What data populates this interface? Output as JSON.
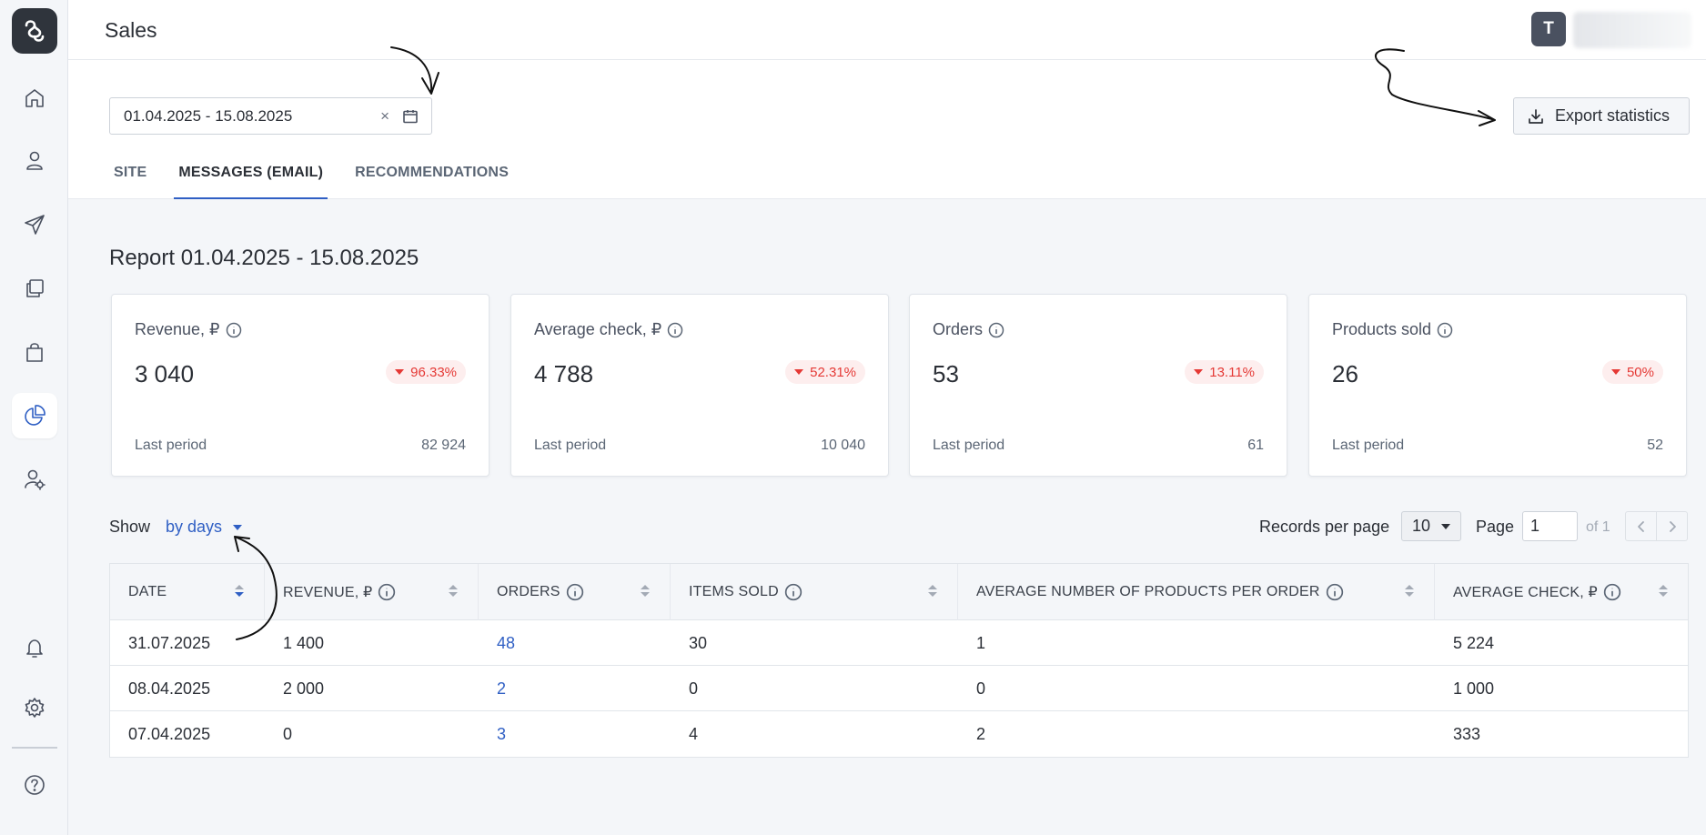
{
  "header": {
    "title": "Sales",
    "avatar_initial": "T"
  },
  "filters": {
    "date_range": "01.04.2025 - 15.08.2025",
    "clear_symbol": "×"
  },
  "export": {
    "label": "Export statistics"
  },
  "tabs": [
    {
      "label": "SITE",
      "active": false
    },
    {
      "label": "MESSAGES (EMAIL)",
      "active": true
    },
    {
      "label": "RECOMMENDATIONS",
      "active": false
    }
  ],
  "report": {
    "title": "Report 01.04.2025 - 15.08.2025"
  },
  "cards": [
    {
      "title": "Revenue, ₽",
      "value": "3 040",
      "change": "96.33%",
      "last_label": "Last period",
      "last_value": "82 924"
    },
    {
      "title": "Average check, ₽",
      "value": "4 788",
      "change": "52.31%",
      "last_label": "Last period",
      "last_value": "10 040"
    },
    {
      "title": "Orders",
      "value": "53",
      "change": "13.11%",
      "last_label": "Last period",
      "last_value": "61"
    },
    {
      "title": "Products sold",
      "value": "26",
      "change": "50%",
      "last_label": "Last period",
      "last_value": "52"
    }
  ],
  "controls": {
    "show_label": "Show",
    "show_value": "by days",
    "records_label": "Records per page",
    "records_value": "10",
    "page_label": "Page",
    "page_value": "1",
    "page_of": "of 1"
  },
  "table": {
    "columns": [
      "DATE",
      "REVENUE, ₽",
      "ORDERS",
      "ITEMS SOLD",
      "AVERAGE NUMBER OF PRODUCTS PER ORDER",
      "AVERAGE CHECK, ₽"
    ],
    "rows": [
      [
        "31.07.2025",
        "1 400",
        "48",
        "30",
        "1",
        "5 224"
      ],
      [
        "08.04.2025",
        "2 000",
        "2",
        "0",
        "0",
        "1 000"
      ],
      [
        "07.04.2025",
        "0",
        "3",
        "4",
        "2",
        "333"
      ]
    ]
  },
  "colors": {
    "accent": "#2f5fc4",
    "negative": "#e53935",
    "sidebar_logo": "#2f343c"
  },
  "icons": {
    "sidebar": [
      "home-icon",
      "user-icon",
      "send-icon",
      "copy-icon",
      "bag-icon",
      "pie-chart-icon",
      "user-settings-icon",
      "bell-icon",
      "gear-icon",
      "help-icon"
    ]
  }
}
